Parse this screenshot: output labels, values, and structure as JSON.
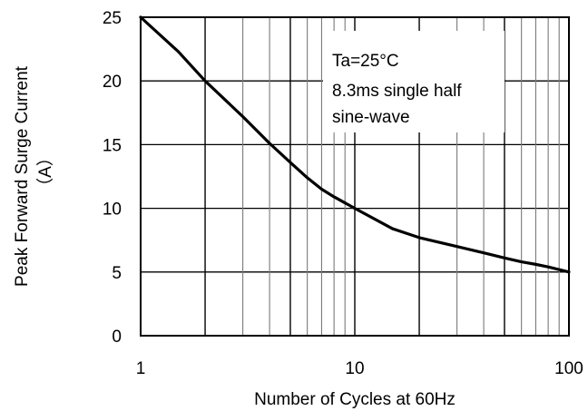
{
  "chart_data": {
    "type": "line",
    "title": "",
    "xlabel": "Number of Cycles at 60Hz",
    "ylabel_line1": "Peak Forward Surge Current",
    "ylabel_line2": "（A）",
    "x_scale": "log",
    "xlim": [
      1,
      100
    ],
    "ylim": [
      0,
      25
    ],
    "x_ticks": [
      1,
      10,
      100
    ],
    "x_tick_labels": [
      "1",
      "10",
      "100"
    ],
    "y_ticks": [
      0,
      5,
      10,
      15,
      20,
      25
    ],
    "y_tick_labels": [
      "0",
      "5",
      "10",
      "15",
      "20",
      "25"
    ],
    "grid": true,
    "annotations": [
      "Ta=25°C",
      "8.3ms single half",
      "sine-wave"
    ],
    "series": [
      {
        "color": "#000000",
        "x": [
          1,
          1.5,
          2,
          3,
          4,
          5,
          6,
          7,
          8,
          10,
          15,
          20,
          30,
          40,
          50,
          60,
          70,
          80,
          100
        ],
        "y": [
          25,
          22.3,
          20,
          17.2,
          15.1,
          13.6,
          12.4,
          11.5,
          10.9,
          10,
          8.4,
          7.7,
          7.0,
          6.5,
          6.1,
          5.8,
          5.6,
          5.4,
          5
        ]
      }
    ]
  }
}
